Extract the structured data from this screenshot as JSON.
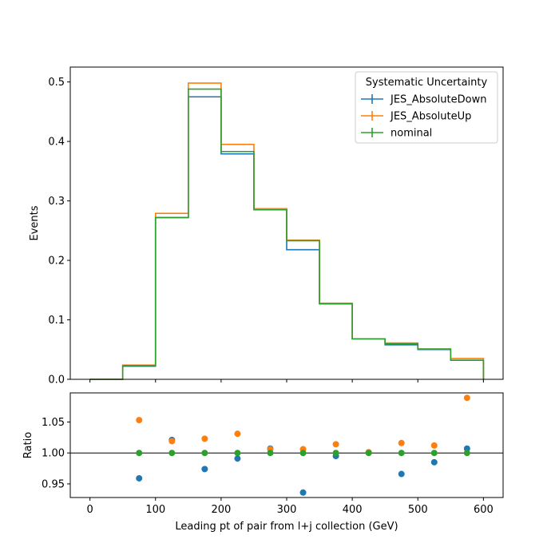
{
  "chart_data": [
    {
      "type": "step",
      "title": "",
      "xlabel": "",
      "ylabel": "Events",
      "xlim": [
        -30,
        630
      ],
      "ylim": [
        0,
        0.525
      ],
      "bin_edges": [
        0,
        50,
        100,
        150,
        200,
        250,
        300,
        350,
        400,
        450,
        500,
        550,
        600
      ],
      "xticks": [
        0,
        100,
        200,
        300,
        400,
        500,
        600
      ],
      "yticks": [
        0.0,
        0.1,
        0.2,
        0.3,
        0.4,
        0.5
      ],
      "ytick_labels": [
        "0.0",
        "0.1",
        "0.2",
        "0.3",
        "0.4",
        "0.5"
      ],
      "legend": {
        "title": "Systematic Uncertainty",
        "placement": "top-right"
      },
      "series": [
        {
          "name": "JES_AbsoluteDown",
          "color": "#1f77b4",
          "values": [
            0.0,
            0.022,
            0.272,
            0.475,
            0.379,
            0.287,
            0.218,
            0.127,
            0.068,
            0.058,
            0.05,
            0.032
          ]
        },
        {
          "name": "JES_AbsoluteUp",
          "color": "#ff7f0e",
          "values": [
            0.0,
            0.024,
            0.279,
            0.498,
            0.395,
            0.287,
            0.234,
            0.128,
            0.068,
            0.061,
            0.051,
            0.035
          ]
        },
        {
          "name": "nominal",
          "color": "#2ca02c",
          "values": [
            0.0,
            0.023,
            0.272,
            0.488,
            0.383,
            0.285,
            0.233,
            0.127,
            0.068,
            0.06,
            0.051,
            0.032
          ]
        }
      ]
    },
    {
      "type": "scatter",
      "title": "",
      "xlabel": "Leading pt of pair from l+j collection (GeV)",
      "ylabel": "Ratio",
      "xlim": [
        -30,
        630
      ],
      "ylim": [
        0.928,
        1.097
      ],
      "xticks": [
        0,
        100,
        200,
        300,
        400,
        500,
        600
      ],
      "xtick_labels": [
        "0",
        "100",
        "200",
        "300",
        "400",
        "500",
        "600"
      ],
      "yticks": [
        0.95,
        1.0,
        1.05
      ],
      "ytick_labels": [
        "0.95",
        "1.00",
        "1.05"
      ],
      "reference_line": 1.0,
      "x": [
        75,
        125,
        175,
        225,
        275,
        325,
        375,
        425,
        475,
        525,
        575
      ],
      "series": [
        {
          "name": "JES_AbsoluteDown",
          "color": "#1f77b4",
          "values": [
            0.959,
            1.021,
            0.974,
            0.991,
            1.007,
            0.936,
            0.995,
            1.001,
            0.966,
            0.985,
            1.007
          ]
        },
        {
          "name": "JES_AbsoluteUp",
          "color": "#ff7f0e",
          "values": [
            1.053,
            1.019,
            1.023,
            1.031,
            1.006,
            1.006,
            1.014,
            1.001,
            1.016,
            1.012,
            1.089
          ]
        },
        {
          "name": "nominal",
          "color": "#2ca02c",
          "values": [
            1.0,
            1.0,
            1.0,
            1.0,
            1.0,
            1.0,
            1.0,
            1.0,
            1.0,
            1.0,
            1.0
          ]
        }
      ]
    }
  ]
}
